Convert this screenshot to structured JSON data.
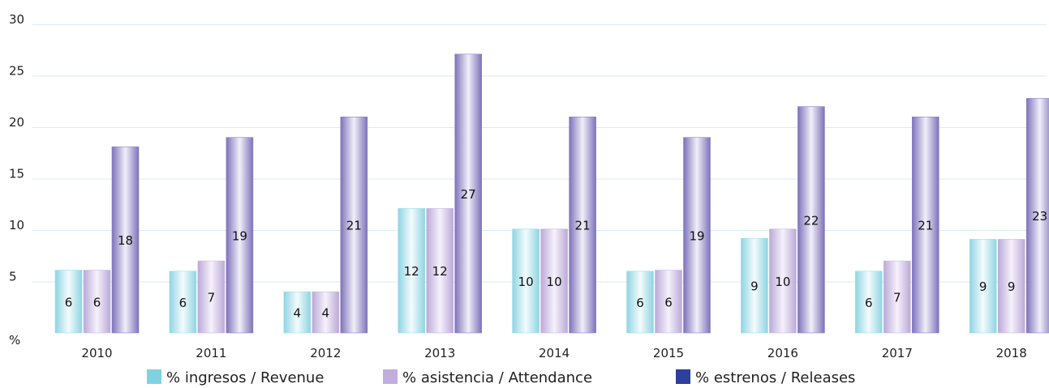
{
  "chart_data": {
    "type": "bar",
    "categories": [
      "2010",
      "2011",
      "2012",
      "2013",
      "2014",
      "2015",
      "2016",
      "2017",
      "2018"
    ],
    "series": [
      {
        "name": "% ingresos / Revenue",
        "values": [
          6,
          6,
          4,
          12,
          10,
          6,
          9,
          6,
          9
        ],
        "color": "#9fdde8"
      },
      {
        "name": "% asistencia / Attendance",
        "values": [
          6,
          7,
          4,
          12,
          10,
          6,
          10,
          7,
          9
        ],
        "color": "#c9b9df"
      },
      {
        "name": "% estrenos / Releases",
        "values": [
          18,
          19,
          21,
          27,
          21,
          19,
          22,
          21,
          23
        ],
        "color": "#8b80c2"
      }
    ],
    "bar_values": [
      [
        6.1,
        6.0,
        4.0,
        12.1,
        10.1,
        6.0,
        9.2,
        6.0,
        9.1
      ],
      [
        6.1,
        7.0,
        4.0,
        12.1,
        10.1,
        6.1,
        10.1,
        7.0,
        9.1
      ],
      [
        18.1,
        19.0,
        21.0,
        27.1,
        21.0,
        19.0,
        22.0,
        21.0,
        22.8
      ]
    ],
    "y_ticks": [
      "%",
      "5",
      "10",
      "15",
      "20",
      "25",
      "30"
    ],
    "ylim": [
      0,
      30
    ],
    "grid": true,
    "legend_position": "bottom",
    "legend_swatch_colors": [
      "#7fd3e0",
      "#c0aedb",
      "#2e3f9e"
    ]
  }
}
